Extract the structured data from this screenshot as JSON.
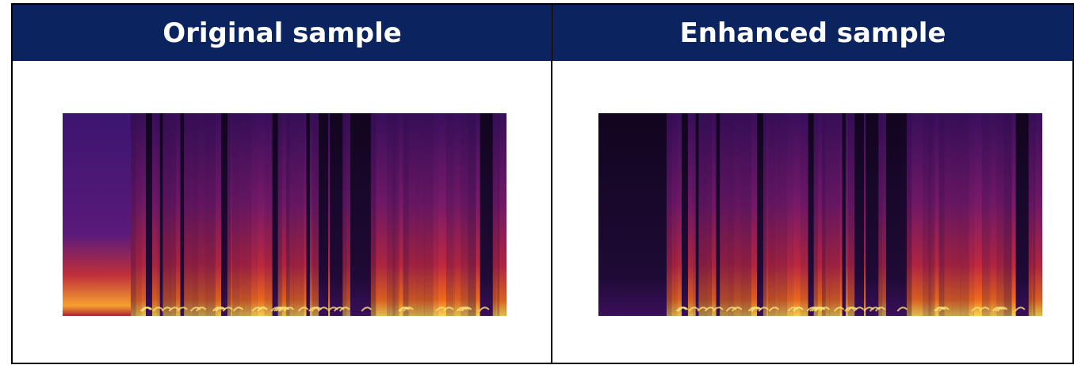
{
  "headers": [
    "Original sample",
    "Enhanced sample"
  ]
}
